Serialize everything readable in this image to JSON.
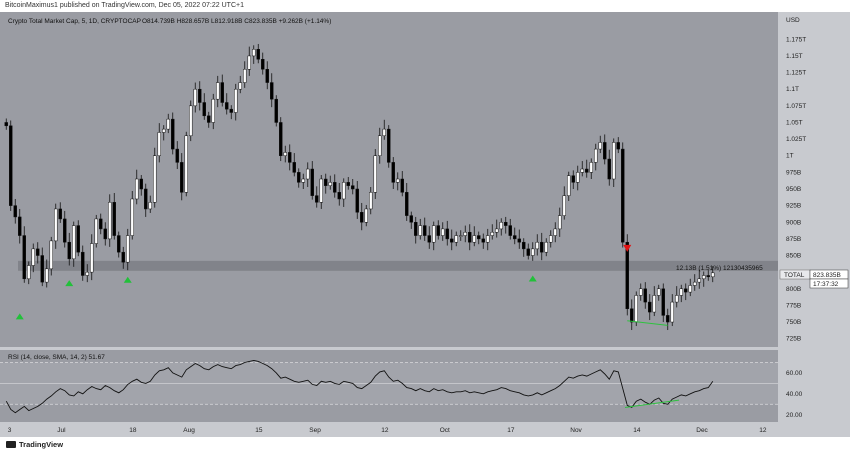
{
  "header": {
    "publisher_line": "BitcoinMaximus1 published on TradingView.com, Dec 05, 2022 07:22 UTC+1"
  },
  "legend": {
    "symbol": "Crypto Total Market Cap, 5, 1D, CRYPTOCAP",
    "ohlc": "O814.739B  H828.657B  L812.918B  C823.835B  +9.262B (+1.14%)",
    "rsi": "RSI (14, close, SMA, 14, 2)  51.67"
  },
  "footer": {
    "brand": "TradingView"
  },
  "colors": {
    "plot_bg": "#9a9ca3",
    "axis_bg": "#c8cacf",
    "candle_up": "#ffffff",
    "candle_down": "#000000",
    "support_band": "#7d7f86",
    "signal_up": "#22c03a",
    "signal_down": "#e01414",
    "divergence": "#2ec23f"
  },
  "chart_data": [
    {
      "type": "candlestick",
      "title": "Crypto Total Market Cap, 5, 1D, CRYPTOCAP",
      "y_unit": "USD",
      "ylim": [
        717,
        1195
      ],
      "y_ticks": [
        "1.175T",
        "1.15T",
        "1.125T",
        "1.1T",
        "1.075T",
        "1.05T",
        "1.025T",
        "1T",
        "975B",
        "950B",
        "925B",
        "900B",
        "875B",
        "850B",
        "800B",
        "775B",
        "750B",
        "725B"
      ],
      "x_ticks": [
        "3",
        "Jul",
        "18",
        "Aug",
        "15",
        "Sep",
        "12",
        "Oct",
        "17",
        "Nov",
        "14",
        "Dec",
        "12"
      ],
      "last_price": "823.835B",
      "price_label": "TOTAL",
      "countdown": "17:37:32",
      "annotation": "12.13B (1.51%) 12130435965",
      "support_band": [
        827,
        842
      ],
      "daily_closes": [
        1045,
        925,
        908,
        880,
        815,
        835,
        860,
        850,
        810,
        830,
        872,
        920,
        905,
        870,
        845,
        895,
        855,
        820,
        825,
        868,
        905,
        890,
        875,
        930,
        880,
        855,
        840,
        880,
        935,
        965,
        950,
        920,
        930,
        1000,
        1035,
        1040,
        1055,
        1010,
        990,
        945,
        1030,
        1075,
        1100,
        1080,
        1060,
        1050,
        1085,
        1110,
        1080,
        1070,
        1065,
        1100,
        1110,
        1130,
        1150,
        1160,
        1145,
        1130,
        1110,
        1085,
        1050,
        1000,
        1005,
        990,
        975,
        960,
        965,
        980,
        940,
        930,
        965,
        955,
        960,
        945,
        935,
        960,
        955,
        950,
        915,
        900,
        920,
        945,
        1000,
        1030,
        1040,
        990,
        960,
        965,
        945,
        910,
        900,
        880,
        895,
        880,
        870,
        895,
        880,
        890,
        875,
        870,
        880,
        880,
        885,
        870,
        880,
        875,
        870,
        880,
        885,
        890,
        900,
        895,
        880,
        875,
        870,
        860,
        850,
        860,
        870,
        855,
        870,
        880,
        890,
        910,
        940,
        970,
        960,
        975,
        980,
        975,
        990,
        1010,
        1020,
        995,
        965,
        1020,
        1010,
        870,
        770,
        750,
        790,
        800,
        780,
        765,
        790,
        800,
        760,
        750,
        780,
        790,
        800,
        795,
        805,
        810,
        815,
        820,
        818,
        824
      ],
      "signals": [
        {
          "type": "up",
          "x": "Jun 21",
          "y": 760
        },
        {
          "type": "up",
          "x": "Jul 1",
          "y": 810
        },
        {
          "type": "up",
          "x": "Jul 14",
          "y": 815
        },
        {
          "type": "up",
          "x": "Oct 13",
          "y": 817
        },
        {
          "type": "down",
          "x": "Nov 10",
          "y": 860
        }
      ]
    },
    {
      "type": "line",
      "title": "RSI (14, close, SMA, 14, 2)",
      "ylim": [
        15,
        80
      ],
      "y_ticks": [
        "60.00",
        "40.00",
        "20.00"
      ],
      "levels": [
        70,
        50,
        30
      ],
      "current": 51.67,
      "values": [
        33,
        25,
        22,
        25,
        28,
        24,
        26,
        28,
        31,
        35,
        38,
        42,
        45,
        43,
        39,
        38,
        42,
        40,
        44,
        47,
        45,
        44,
        48,
        46,
        43,
        41,
        44,
        49,
        52,
        54,
        51,
        50,
        52,
        58,
        62,
        63,
        65,
        60,
        58,
        56,
        63,
        66,
        69,
        67,
        64,
        63,
        66,
        68,
        66,
        65,
        64,
        67,
        68,
        70,
        71,
        72,
        71,
        69,
        67,
        64,
        60,
        55,
        56,
        54,
        52,
        51,
        52,
        53,
        49,
        48,
        52,
        51,
        52,
        50,
        49,
        52,
        51,
        50,
        46,
        45,
        48,
        51,
        57,
        61,
        62,
        56,
        52,
        53,
        50,
        46,
        45,
        43,
        45,
        43,
        42,
        45,
        43,
        44,
        42,
        41,
        42,
        42,
        43,
        41,
        42,
        41,
        40,
        42,
        43,
        44,
        46,
        45,
        43,
        42,
        41,
        39,
        38,
        39,
        41,
        39,
        41,
        43,
        45,
        48,
        52,
        56,
        55,
        57,
        58,
        57,
        59,
        61,
        63,
        59,
        54,
        62,
        61,
        45,
        29,
        27,
        33,
        35,
        32,
        30,
        34,
        36,
        31,
        30,
        35,
        37,
        39,
        38,
        40,
        42,
        43,
        45,
        46,
        52
      ]
    }
  ]
}
